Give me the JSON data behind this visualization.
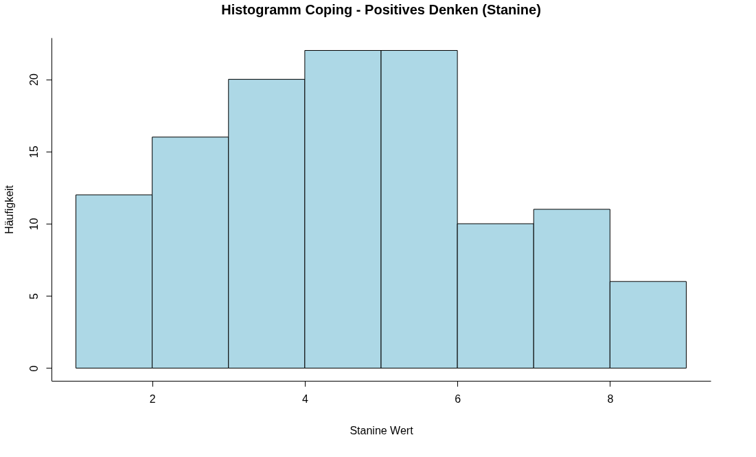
{
  "chart_data": {
    "type": "histogram",
    "title": "Histogramm Coping - Positives Denken (Stanine)",
    "xlabel": "Stanine Wert",
    "ylabel": "Häufigkeit",
    "bins": [
      1,
      2,
      3,
      4,
      5,
      6,
      7,
      8,
      9
    ],
    "values": [
      12,
      16,
      20,
      22,
      22,
      10,
      11,
      6
    ],
    "color": "#add8e6",
    "xlim": [
      0.68,
      9.32
    ],
    "xticks": [
      2,
      4,
      6,
      8
    ],
    "ylim": [
      -0.88,
      22.88
    ],
    "yticks": [
      0,
      5,
      10,
      15,
      20
    ],
    "grid": false
  }
}
